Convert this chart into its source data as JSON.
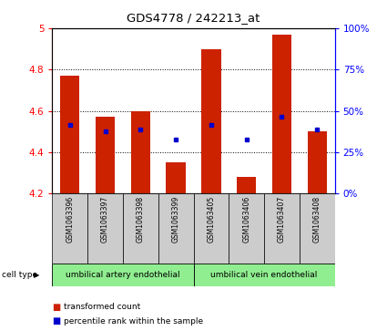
{
  "title": "GDS4778 / 242213_at",
  "samples": [
    "GSM1063396",
    "GSM1063397",
    "GSM1063398",
    "GSM1063399",
    "GSM1063405",
    "GSM1063406",
    "GSM1063407",
    "GSM1063408"
  ],
  "bar_bottom": 4.2,
  "bar_tops": [
    4.77,
    4.57,
    4.6,
    4.35,
    4.9,
    4.28,
    4.97,
    4.5
  ],
  "percentile_values": [
    4.53,
    4.5,
    4.51,
    4.46,
    4.53,
    4.46,
    4.57,
    4.51
  ],
  "ylim_left": [
    4.2,
    5.0
  ],
  "ylim_right": [
    0,
    100
  ],
  "yticks_left": [
    4.2,
    4.4,
    4.6,
    4.8,
    5.0
  ],
  "ytick_labels_left": [
    "4.2",
    "4.4",
    "4.6",
    "4.8",
    "5"
  ],
  "yticks_right": [
    0,
    25,
    50,
    75,
    100
  ],
  "ytick_labels_right": [
    "0%",
    "25%",
    "50%",
    "75%",
    "100%"
  ],
  "grid_lines": [
    4.4,
    4.6,
    4.8
  ],
  "bar_color": "#CC2200",
  "dot_color": "#0000CC",
  "bg_color": "#ffffff",
  "cell_type_group1_label": "umbilical artery endothelial",
  "cell_type_group2_label": "umbilical vein endothelial",
  "cell_type_color": "#90EE90",
  "sample_box_color": "#CCCCCC",
  "legend_bar_label": "transformed count",
  "legend_dot_label": "percentile rank within the sample",
  "cell_type_label": "cell type",
  "bar_width": 0.55
}
